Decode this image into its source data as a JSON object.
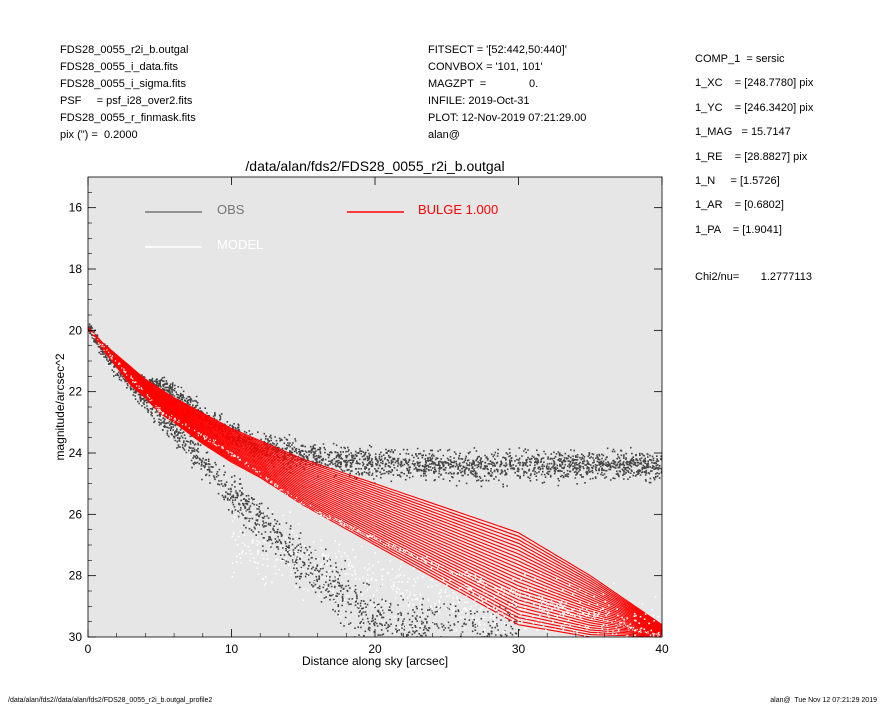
{
  "header_left": [
    "FDS28_0055_r2i_b.outgal",
    "FDS28_0055_i_data.fits",
    "FDS28_0055_i_sigma.fits",
    "PSF     = psf_i28_over2.fits",
    "FDS28_0055_r_finmask.fits",
    "pix (\") =  0.2000"
  ],
  "header_mid": [
    "FITSECT = '[52:442,50:440]'",
    "CONVBOX = '101, 101'",
    "MAGZPT  =              0.",
    "INFILE: 2019-Oct-31",
    "PLOT: 12-Nov-2019 07:21:29.00",
    "alan@"
  ],
  "header_right": [
    "COMP_1  = sersic",
    "1_XC    = [248.7780] pix",
    "1_YC    = [246.3420] pix",
    "1_MAG   = 15.7147",
    "1_RE    = [28.8827] pix",
    "1_N     = [1.5726]",
    "1_AR    = [0.6802]",
    "1_PA    = [1.9041]"
  ],
  "chi2": {
    "label": "Chi2/nu=",
    "value": "1.2777113"
  },
  "footer_left": "/data/alan/fds2//data/alan/fds2/FDS28_0055_r2i_b.outgal_profile2",
  "footer_right": "alan@  Tue Nov 12 07:21:29 2019",
  "colors": {
    "plot_background": "#e6e6e6",
    "obs": "#444444",
    "model": "#ffffff",
    "bulge": "#ff0000"
  },
  "chart_data": {
    "type": "scatter",
    "title": "/data/alan/fds2/FDS28_0055_r2i_b.outgal",
    "xlabel": "Distance along sky [arcsec]",
    "ylabel": "magnitude/arcsec^2",
    "xlim": [
      0,
      40
    ],
    "ylim": [
      30,
      15
    ],
    "y_inverted": true,
    "grid": false,
    "legend_position": "top",
    "x_ticks": [
      0,
      10,
      20,
      30,
      40
    ],
    "y_ticks": [
      16,
      18,
      20,
      22,
      24,
      26,
      28,
      30
    ],
    "legend": [
      {
        "label": "OBS",
        "color": "#777777"
      },
      {
        "label": "MODEL",
        "color": "#ffffff"
      },
      {
        "label": "BULGE  1.000",
        "color": "#ff0000"
      }
    ],
    "series": [
      {
        "name": "OBS",
        "style": "points",
        "x": [
          0,
          1,
          2,
          3,
          4,
          5,
          6,
          7,
          8,
          10,
          12,
          15,
          20,
          25,
          30,
          35,
          40
        ],
        "y": [
          19.9,
          20.5,
          21.0,
          21.4,
          21.7,
          21.7,
          22.0,
          22.4,
          22.8,
          23.4,
          23.8,
          24.1,
          24.3,
          24.4,
          24.4,
          24.4,
          24.4
        ],
        "x_inner": [
          0,
          2,
          4,
          6,
          8,
          10,
          12,
          15,
          20,
          25,
          30
        ],
        "y_inner": [
          20.0,
          21.3,
          22.3,
          23.3,
          24.3,
          25.3,
          26.3,
          27.6,
          29.5,
          30.0,
          30.0
        ]
      },
      {
        "name": "MODEL",
        "style": "points",
        "x": [
          0,
          5,
          10,
          15,
          20,
          25,
          30,
          35,
          40
        ],
        "y": [
          20.0,
          22.6,
          24.0,
          25.7,
          26.8,
          27.8,
          28.6,
          29.3,
          30.0
        ]
      },
      {
        "name": "BULGE  1.000",
        "style": "band",
        "x": [
          0,
          1,
          2,
          3,
          4,
          5,
          6,
          8,
          10,
          12,
          15,
          20,
          25,
          30,
          35,
          40
        ],
        "y_lower": [
          19.9,
          20.4,
          20.8,
          21.2,
          21.6,
          21.9,
          22.2,
          22.7,
          23.2,
          23.6,
          24.2,
          25.0,
          25.8,
          26.6,
          28.0,
          29.6
        ],
        "y_upper": [
          19.9,
          20.6,
          21.2,
          21.8,
          22.2,
          22.7,
          23.0,
          23.7,
          24.3,
          24.8,
          25.7,
          27.0,
          28.3,
          29.6,
          30.0,
          30.0
        ]
      }
    ]
  }
}
